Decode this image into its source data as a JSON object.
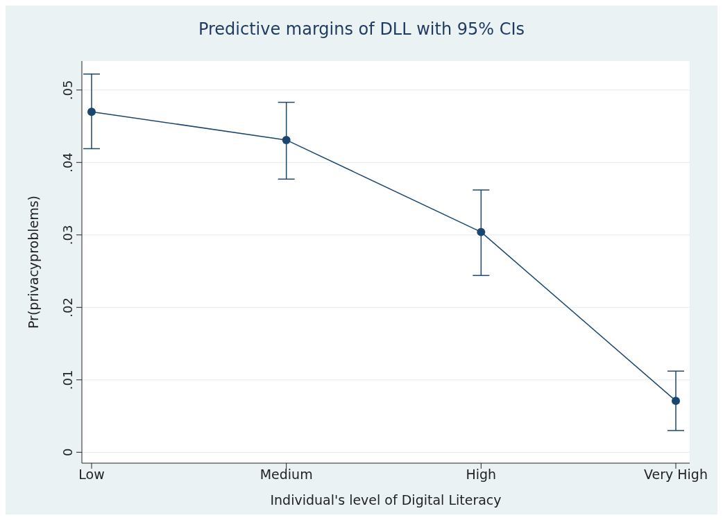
{
  "chart_data": {
    "type": "line",
    "title": "Predictive margins of DLL with 95% CIs",
    "xlabel": "Individual's level of Digital Literacy",
    "ylabel": "Pr(privacyproblems)",
    "categories": [
      "Low",
      "Medium",
      "High",
      "Very High"
    ],
    "series": [
      {
        "color": "#1a476f",
        "values": [
          0.047,
          0.0431,
          0.0304,
          0.0071
        ],
        "errors": [
          [
            0.0419,
            0.0522
          ],
          [
            0.0377,
            0.0483
          ],
          [
            0.0244,
            0.0362
          ],
          [
            0.003,
            0.0112
          ]
        ]
      }
    ],
    "ylim": [
      -0.0015,
      0.054
    ],
    "yticks": [
      {
        "value": 0,
        "label": "0"
      },
      {
        "value": 0.01,
        "label": ".01"
      },
      {
        "value": 0.02,
        "label": ".02"
      },
      {
        "value": 0.03,
        "label": ".03"
      },
      {
        "value": 0.04,
        "label": ".04"
      },
      {
        "value": 0.05,
        "label": ".05"
      }
    ],
    "grid": "y",
    "marker": "circle",
    "line_style": "solid"
  }
}
